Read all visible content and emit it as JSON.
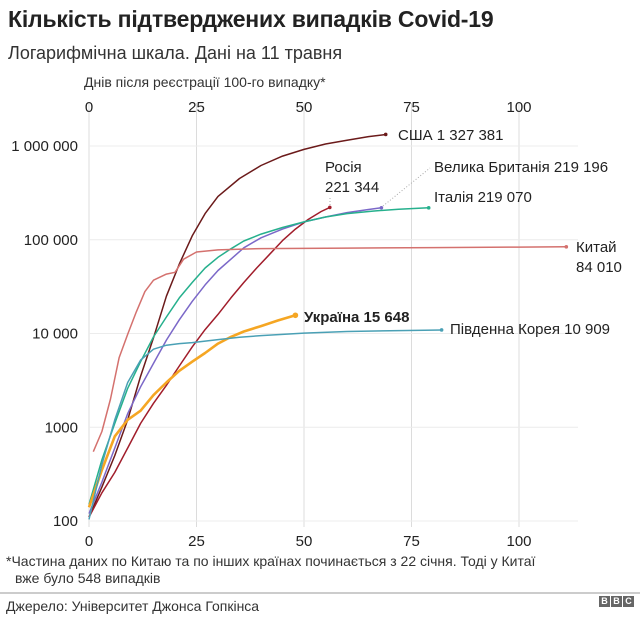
{
  "header": {
    "title": "Кількість підтверджених випадків Covid-19",
    "subtitle": "Логарифмічна шкала. Дані на 11 травня"
  },
  "footer": {
    "note_line1": "*Частина даних по Китаю та по інших країнах починається з 22 січня. Тоді у Китаї",
    "note_line2": "вже було 548 випадків",
    "source": "Джерело: Університет Джонса Гопкінса",
    "logo_letters": [
      "B",
      "B",
      "C"
    ]
  },
  "chart_data": {
    "type": "line",
    "title": "Кількість підтверджених випадків Covid-19",
    "subtitle": "Логарифмічна шкала. Дані на 11 травня",
    "xlabel": "Днів після реєстрації 100-го випадку*",
    "ylabel": "",
    "x_ticks": [
      "0",
      "25",
      "50",
      "75",
      "100"
    ],
    "y_ticks": [
      "100",
      "1000",
      "10 000",
      "100 000",
      "1 000 000"
    ],
    "xlim": [
      0,
      112
    ],
    "ylim": [
      100,
      2000000
    ],
    "y_scale": "log",
    "grid": true,
    "legend": "inline end labels",
    "series": [
      {
        "name": "США",
        "end_label": "США  1 327 381",
        "end_value": 1327381,
        "color": "#6b1a1a",
        "points": [
          [
            0,
            110
          ],
          [
            3,
            230
          ],
          [
            6,
            500
          ],
          [
            9,
            1200
          ],
          [
            12,
            3500
          ],
          [
            15,
            9000
          ],
          [
            18,
            25000
          ],
          [
            21,
            55000
          ],
          [
            24,
            110000
          ],
          [
            27,
            190000
          ],
          [
            30,
            290000
          ],
          [
            35,
            450000
          ],
          [
            40,
            620000
          ],
          [
            45,
            780000
          ],
          [
            50,
            920000
          ],
          [
            55,
            1050000
          ],
          [
            60,
            1150000
          ],
          [
            65,
            1260000
          ],
          [
            69,
            1327381
          ]
        ]
      },
      {
        "name": "Росія",
        "end_label": "Росія 221 344",
        "end_value": 221344,
        "color": "#a11d2b",
        "points": [
          [
            0,
            110
          ],
          [
            3,
            200
          ],
          [
            6,
            330
          ],
          [
            9,
            600
          ],
          [
            12,
            1100
          ],
          [
            15,
            1800
          ],
          [
            18,
            2800
          ],
          [
            21,
            4500
          ],
          [
            24,
            7200
          ],
          [
            27,
            11000
          ],
          [
            30,
            16000
          ],
          [
            33,
            24000
          ],
          [
            36,
            35000
          ],
          [
            39,
            50000
          ],
          [
            42,
            70000
          ],
          [
            45,
            98000
          ],
          [
            48,
            130000
          ],
          [
            51,
            165000
          ],
          [
            54,
            200000
          ],
          [
            56,
            221344
          ]
        ]
      },
      {
        "name": "Велика Британія",
        "end_label": "Велика Британія  219 196",
        "end_value": 219196,
        "color": "#7b68c8",
        "points": [
          [
            0,
            120
          ],
          [
            3,
            260
          ],
          [
            6,
            600
          ],
          [
            9,
            1400
          ],
          [
            12,
            2700
          ],
          [
            15,
            4800
          ],
          [
            18,
            8500
          ],
          [
            21,
            14000
          ],
          [
            24,
            22000
          ],
          [
            27,
            33000
          ],
          [
            30,
            47000
          ],
          [
            33,
            62000
          ],
          [
            36,
            82000
          ],
          [
            40,
            105000
          ],
          [
            45,
            130000
          ],
          [
            50,
            155000
          ],
          [
            55,
            175000
          ],
          [
            60,
            195000
          ],
          [
            65,
            210000
          ],
          [
            68,
            219196
          ]
        ]
      },
      {
        "name": "Італія",
        "end_label": "Італія  219 070",
        "end_value": 219070,
        "color": "#26b08d",
        "points": [
          [
            0,
            150
          ],
          [
            3,
            450
          ],
          [
            6,
            1100
          ],
          [
            9,
            2600
          ],
          [
            12,
            5000
          ],
          [
            15,
            9200
          ],
          [
            18,
            15000
          ],
          [
            21,
            24000
          ],
          [
            24,
            35000
          ],
          [
            27,
            50000
          ],
          [
            30,
            65000
          ],
          [
            33,
            80000
          ],
          [
            36,
            97000
          ],
          [
            40,
            115000
          ],
          [
            45,
            135000
          ],
          [
            50,
            155000
          ],
          [
            55,
            175000
          ],
          [
            60,
            190000
          ],
          [
            66,
            202000
          ],
          [
            72,
            212000
          ],
          [
            79,
            219070
          ]
        ]
      },
      {
        "name": "Китай",
        "end_label": "Китай 84 010",
        "end_value": 84010,
        "color": "#d4716e",
        "points": [
          [
            1,
            548
          ],
          [
            3,
            900
          ],
          [
            5,
            2000
          ],
          [
            7,
            5500
          ],
          [
            9,
            9800
          ],
          [
            11,
            17000
          ],
          [
            13,
            28000
          ],
          [
            15,
            37000
          ],
          [
            18,
            43000
          ],
          [
            20,
            45000
          ],
          [
            22,
            62000
          ],
          [
            25,
            74000
          ],
          [
            30,
            78000
          ],
          [
            40,
            80500
          ],
          [
            60,
            81500
          ],
          [
            80,
            82500
          ],
          [
            100,
            83500
          ],
          [
            111,
            84010
          ]
        ]
      },
      {
        "name": "Україна",
        "end_label": "Україна  15 648",
        "end_value": 15648,
        "color": "#f5a623",
        "bold": true,
        "points": [
          [
            0,
            140
          ],
          [
            3,
            350
          ],
          [
            6,
            800
          ],
          [
            9,
            1200
          ],
          [
            12,
            1500
          ],
          [
            15,
            2200
          ],
          [
            18,
            3000
          ],
          [
            21,
            4000
          ],
          [
            24,
            5000
          ],
          [
            27,
            6200
          ],
          [
            30,
            7800
          ],
          [
            33,
            9200
          ],
          [
            36,
            10500
          ],
          [
            40,
            12000
          ],
          [
            44,
            13800
          ],
          [
            48,
            15648
          ]
        ]
      },
      {
        "name": "Південна Корея",
        "end_label": "Південна Корея  10 909",
        "end_value": 10909,
        "color": "#4aa0b5",
        "points": [
          [
            0,
            104
          ],
          [
            3,
            400
          ],
          [
            6,
            1200
          ],
          [
            9,
            3000
          ],
          [
            12,
            5200
          ],
          [
            15,
            6800
          ],
          [
            18,
            7500
          ],
          [
            21,
            7800
          ],
          [
            24,
            8000
          ],
          [
            27,
            8300
          ],
          [
            30,
            8600
          ],
          [
            35,
            9100
          ],
          [
            40,
            9500
          ],
          [
            50,
            10100
          ],
          [
            60,
            10500
          ],
          [
            70,
            10700
          ],
          [
            82,
            10909
          ]
        ]
      }
    ]
  }
}
